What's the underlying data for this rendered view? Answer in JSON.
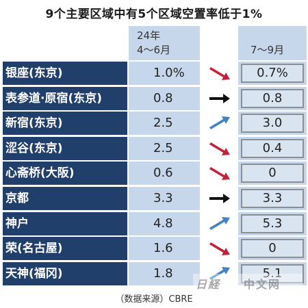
{
  "title": "9个主要区域中有5个区域空置率低于1%",
  "header": {
    "period1_year": "24年",
    "period1_months": "4～6月",
    "period2_months": "7～9月"
  },
  "rows": [
    {
      "area": "银座(东京)",
      "v1": "1.0%",
      "trend": "down",
      "v2": "0.7%"
    },
    {
      "area": "表参道·原宿(东京)",
      "v1": "0.8",
      "trend": "flat",
      "v2": "0.8"
    },
    {
      "area": "新宿(东京)",
      "v1": "2.5",
      "trend": "up",
      "v2": "3.0"
    },
    {
      "area": "涩谷(东京)",
      "v1": "2.5",
      "trend": "down",
      "v2": "0.4"
    },
    {
      "area": "心斋桥(大阪)",
      "v1": "0.6",
      "trend": "down",
      "v2": "0"
    },
    {
      "area": "京都",
      "v1": "3.3",
      "trend": "flat",
      "v2": "3.3"
    },
    {
      "area": "神户",
      "v1": "4.8",
      "trend": "up",
      "v2": "5.3"
    },
    {
      "area": "荣(名古屋)",
      "v1": "1.6",
      "trend": "down",
      "v2": "0"
    },
    {
      "area": "天神(福冈)",
      "v1": "1.8",
      "trend": "up",
      "v2": "5.1"
    }
  ],
  "source": "（数据来源）CBRE",
  "watermark": {
    "mark": "日経",
    "text": "中文网"
  },
  "colors": {
    "label_bg": "#213f6b",
    "value_bg": "#c6d7ec",
    "arrow_down": "#c4213a",
    "arrow_flat": "#111111",
    "arrow_up": "#3f82c9"
  }
}
